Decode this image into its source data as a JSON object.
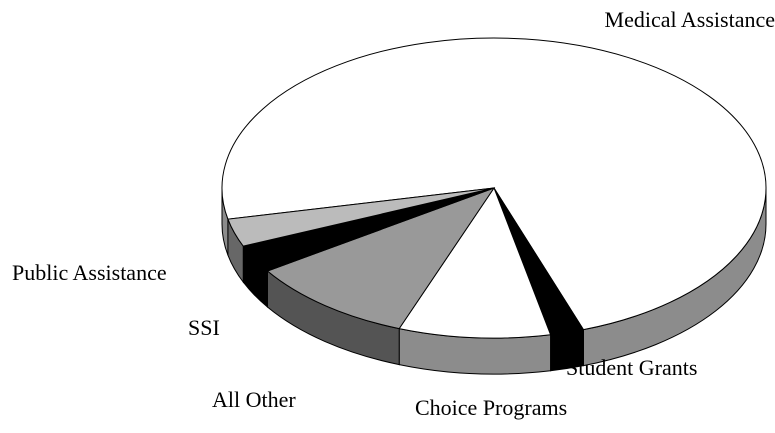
{
  "chart_data": {
    "type": "pie3d",
    "categories": [
      "Medical Assistance",
      "Student Grants",
      "Choice Programs",
      "All Other",
      "SSI",
      "Public Assistance"
    ],
    "values": [
      73,
      2,
      9,
      10,
      3,
      3
    ],
    "colors": [
      "#ffffff",
      "#000000",
      "#ffffff",
      "#999999",
      "#000000",
      "#bbbbbb"
    ]
  }
}
